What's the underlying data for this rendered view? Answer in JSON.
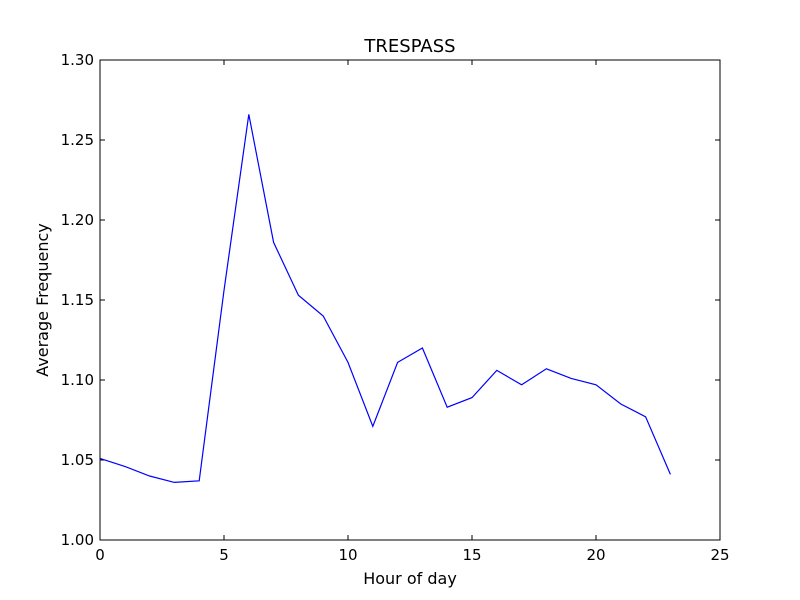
{
  "chart_data": {
    "type": "line",
    "title": "TRESPASS",
    "xlabel": "Hour of day",
    "ylabel": "Average Frequency",
    "xlim": [
      0,
      25
    ],
    "ylim": [
      1.0,
      1.3
    ],
    "xticks": [
      0,
      5,
      10,
      15,
      20,
      25
    ],
    "yticks": [
      1.0,
      1.05,
      1.1,
      1.15,
      1.2,
      1.25,
      1.3
    ],
    "xtick_labels": [
      "0",
      "5",
      "10",
      "15",
      "20",
      "25"
    ],
    "ytick_labels": [
      "1.00",
      "1.05",
      "1.10",
      "1.15",
      "1.20",
      "1.25",
      "1.30"
    ],
    "grid": false,
    "legend": "none",
    "line_color": "#0000ff",
    "series": [
      {
        "x": [
          0,
          1,
          2,
          3,
          4,
          5,
          6,
          7,
          8,
          9,
          10,
          11,
          12,
          13,
          14,
          15,
          16,
          17,
          18,
          19,
          20,
          21,
          22,
          23
        ],
        "values": [
          1.051,
          1.046,
          1.04,
          1.036,
          1.037,
          1.156,
          1.266,
          1.186,
          1.153,
          1.14,
          1.111,
          1.071,
          1.111,
          1.12,
          1.083,
          1.089,
          1.106,
          1.097,
          1.107,
          1.101,
          1.097,
          1.085,
          1.077,
          1.041
        ]
      }
    ]
  }
}
